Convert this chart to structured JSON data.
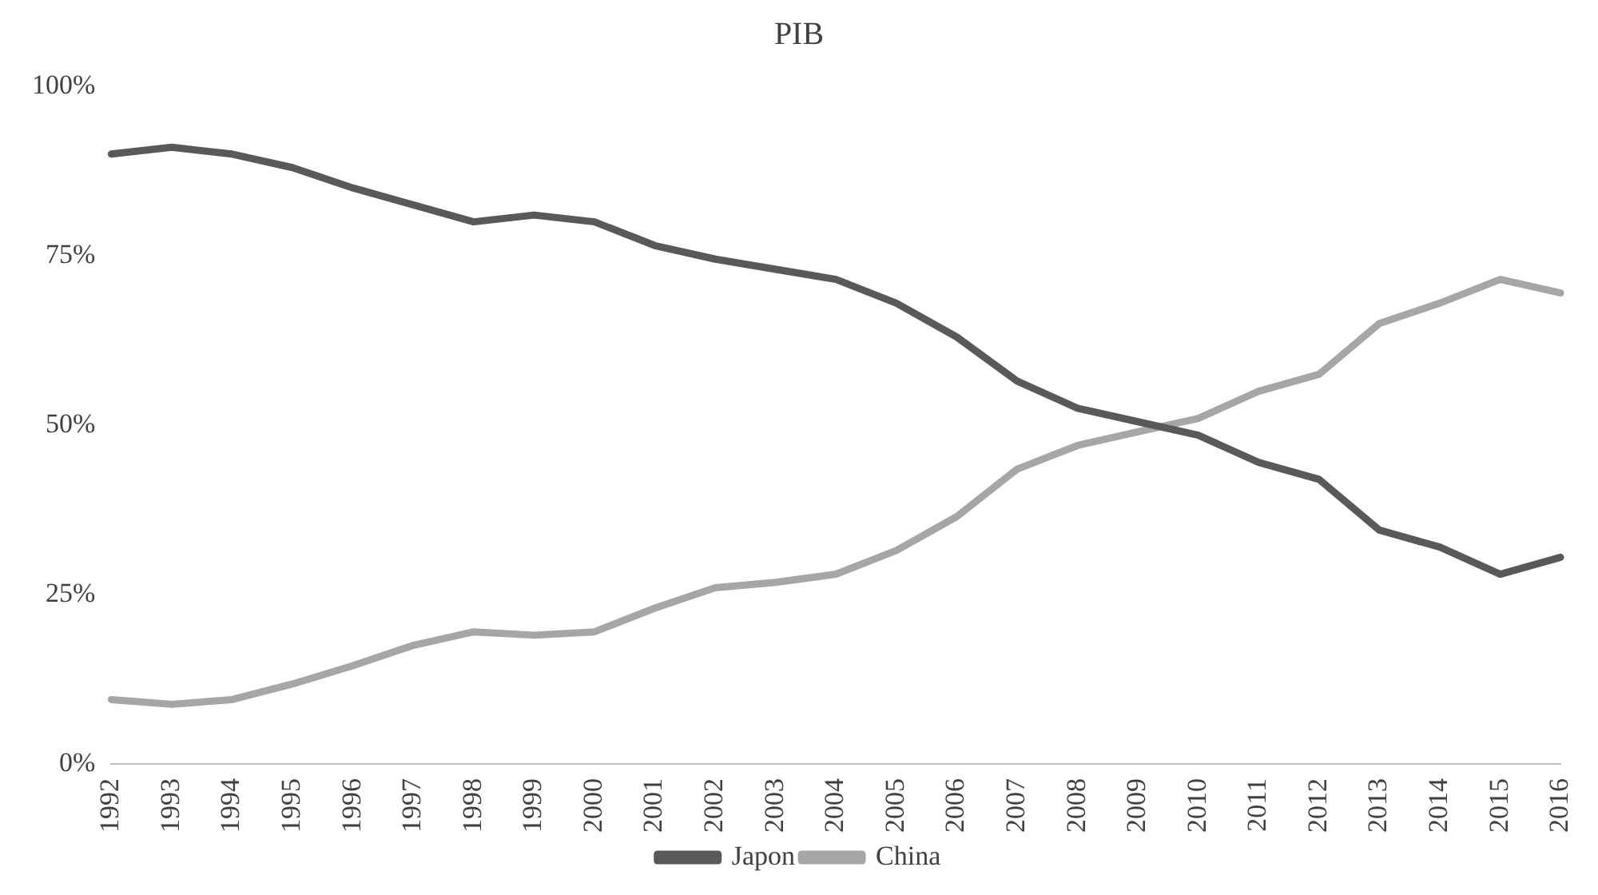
{
  "chart_data": {
    "type": "line",
    "title": "PIB",
    "categories": [
      "1992",
      "1993",
      "1994",
      "1995",
      "1996",
      "1997",
      "1998",
      "1999",
      "2000",
      "2001",
      "2002",
      "2003",
      "2004",
      "2005",
      "2006",
      "2007",
      "2008",
      "2009",
      "2010",
      "2011",
      "2012",
      "2013",
      "2014",
      "2015",
      "2016"
    ],
    "series": [
      {
        "name": "Japon",
        "color": "#595959",
        "values": [
          90,
          91,
          90,
          88,
          85,
          82.5,
          80,
          81,
          80,
          76.5,
          74.5,
          73,
          71.5,
          68,
          63,
          56.5,
          52.5,
          50.5,
          48.5,
          44.5,
          42,
          34.5,
          32,
          28,
          30.5
        ]
      },
      {
        "name": "China",
        "color": "#a6a6a6",
        "values": [
          9.5,
          8.8,
          9.5,
          11.8,
          14.5,
          17.5,
          19.5,
          19,
          19.5,
          23,
          26,
          26.8,
          28,
          31.5,
          36.5,
          43.5,
          47,
          49,
          51,
          55,
          57.5,
          65,
          68,
          71.5,
          69.5
        ]
      }
    ],
    "ylim": [
      0,
      100
    ],
    "yticks": [
      {
        "value": 0,
        "label": "0%"
      },
      {
        "value": 25,
        "label": "25%"
      },
      {
        "value": 50,
        "label": "50%"
      },
      {
        "value": 75,
        "label": "75%"
      },
      {
        "value": 100,
        "label": "100%"
      }
    ],
    "grid": false,
    "legend": "bottom",
    "marker": "none",
    "line_style": "solid"
  }
}
